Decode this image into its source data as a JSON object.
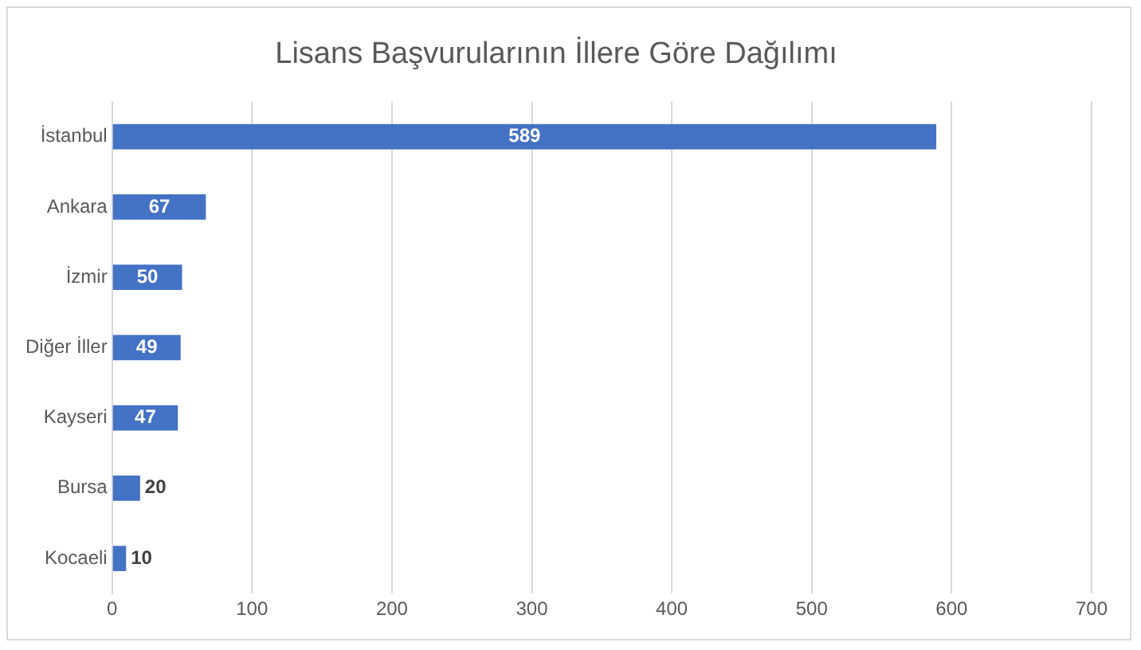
{
  "chart_data": {
    "type": "bar",
    "orientation": "horizontal",
    "title": "Lisans Başvurularının İllere Göre Dağılımı",
    "categories": [
      "İstanbul",
      "Ankara",
      "İzmir",
      "Diğer İller",
      "Kayseri",
      "Bursa",
      "Kocaeli"
    ],
    "values": [
      589,
      67,
      50,
      49,
      47,
      20,
      10
    ],
    "color": "#4472c4",
    "xlim": [
      0,
      700
    ],
    "xticks": [
      0,
      100,
      200,
      300,
      400,
      500,
      600,
      700
    ],
    "grid": "x",
    "data_labels": true,
    "legend": false
  }
}
